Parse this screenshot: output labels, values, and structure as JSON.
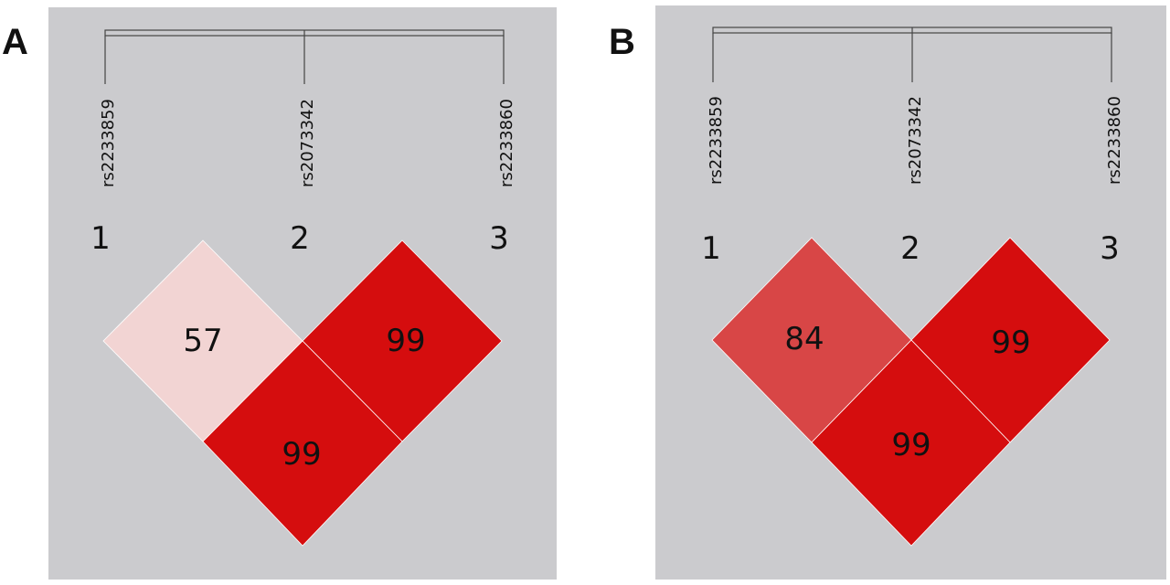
{
  "panels": [
    {
      "letter": "A",
      "snps": [
        "rs2233859",
        "rs2073342",
        "rs2233860"
      ],
      "indices": [
        "1",
        "2",
        "3"
      ],
      "cells": [
        {
          "pair": "1-2",
          "value": "57",
          "color": "#F2D4D3"
        },
        {
          "pair": "2-3",
          "value": "99",
          "color": "#D50D0E"
        },
        {
          "pair": "1-3",
          "value": "99",
          "color": "#D50D0E"
        }
      ]
    },
    {
      "letter": "B",
      "snps": [
        "rs2233859",
        "rs2073342",
        "rs2233860"
      ],
      "indices": [
        "1",
        "2",
        "3"
      ],
      "cells": [
        {
          "pair": "1-2",
          "value": "84",
          "color": "#D84646"
        },
        {
          "pair": "2-3",
          "value": "99",
          "color": "#D50D0E"
        },
        {
          "pair": "1-3",
          "value": "99",
          "color": "#D50D0E"
        }
      ]
    }
  ],
  "colors": {
    "panel_background": "#CBCBCE",
    "page_background": "#FFFFFF",
    "text": "#111111"
  }
}
